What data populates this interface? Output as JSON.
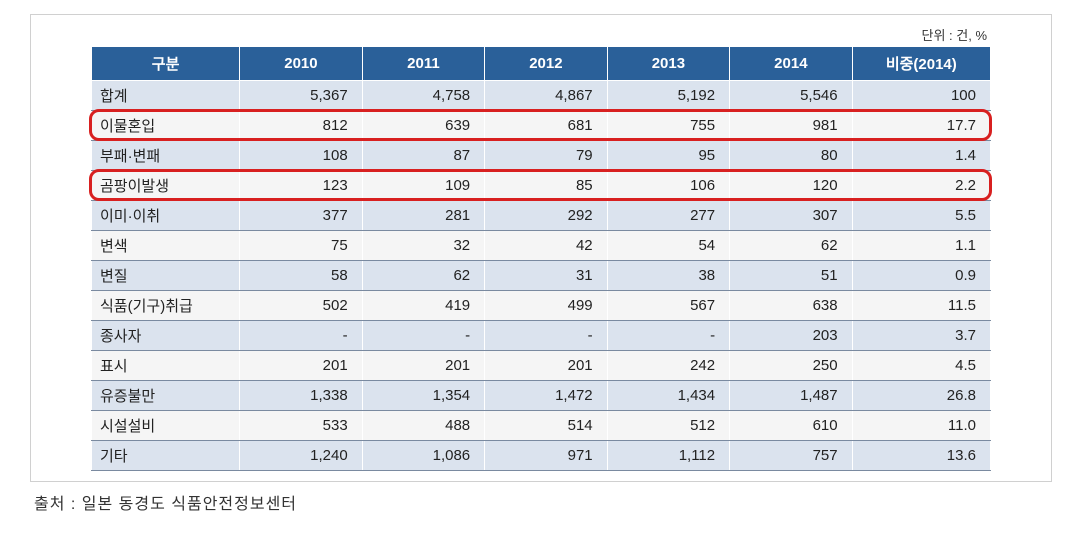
{
  "unit_label": "단위 : 건, %",
  "source": "출처 : 일본 동경도 식품안전정보센터",
  "table": {
    "headers": {
      "category": "구분",
      "y2010": "2010",
      "y2011": "2011",
      "y2012": "2012",
      "y2013": "2013",
      "y2014": "2014",
      "ratio": "비중(2014)"
    },
    "rows": [
      {
        "label": "합계",
        "v": [
          "5,367",
          "4,758",
          "4,867",
          "5,192",
          "5,546",
          "100"
        ]
      },
      {
        "label": "이물혼입",
        "v": [
          "812",
          "639",
          "681",
          "755",
          "981",
          "17.7"
        ]
      },
      {
        "label": "부패·변패",
        "v": [
          "108",
          "87",
          "79",
          "95",
          "80",
          "1.4"
        ]
      },
      {
        "label": "곰팡이발생",
        "v": [
          "123",
          "109",
          "85",
          "106",
          "120",
          "2.2"
        ]
      },
      {
        "label": "이미·이취",
        "v": [
          "377",
          "281",
          "292",
          "277",
          "307",
          "5.5"
        ]
      },
      {
        "label": "변색",
        "v": [
          "75",
          "32",
          "42",
          "54",
          "62",
          "1.1"
        ]
      },
      {
        "label": "변질",
        "v": [
          "58",
          "62",
          "31",
          "38",
          "51",
          "0.9"
        ]
      },
      {
        "label": "식품(기구)취급",
        "v": [
          "502",
          "419",
          "499",
          "567",
          "638",
          "11.5"
        ]
      },
      {
        "label": "종사자",
        "v": [
          "-",
          "-",
          "-",
          "-",
          "203",
          "3.7"
        ]
      },
      {
        "label": "표시",
        "v": [
          "201",
          "201",
          "201",
          "242",
          "250",
          "4.5"
        ]
      },
      {
        "label": "유증불만",
        "v": [
          "1,338",
          "1,354",
          "1,472",
          "1,434",
          "1,487",
          "26.8"
        ]
      },
      {
        "label": "시설설비",
        "v": [
          "533",
          "488",
          "514",
          "512",
          "610",
          "11.0"
        ]
      },
      {
        "label": "기타",
        "v": [
          "1,240",
          "1,086",
          "971",
          "1,112",
          "757",
          "13.6"
        ]
      }
    ]
  },
  "styling": {
    "header_bg": "#2a6099",
    "header_fg": "#ffffff",
    "row_bg_even": "#dbe3ee",
    "row_bg_odd": "#f5f5f5",
    "border_color": "#7a8aa0",
    "highlight_border": "#d82020",
    "highlight_rows": [
      1,
      3
    ]
  }
}
